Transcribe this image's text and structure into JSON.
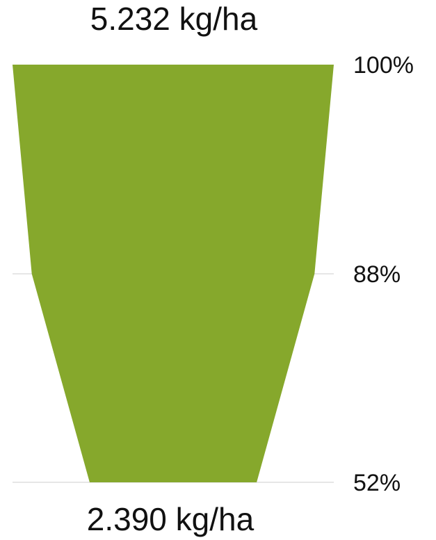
{
  "chart_data": {
    "type": "funnel",
    "top_value_label": "5.232 kg/ha",
    "bottom_value_label": "2.390 kg/ha",
    "stages": [
      {
        "percent": 100,
        "label": "100%"
      },
      {
        "percent": 88,
        "label": "88%"
      },
      {
        "percent": 52,
        "label": "52%"
      }
    ],
    "fill_color": "#86a82c",
    "gridline_color": "#e6e6e6"
  }
}
